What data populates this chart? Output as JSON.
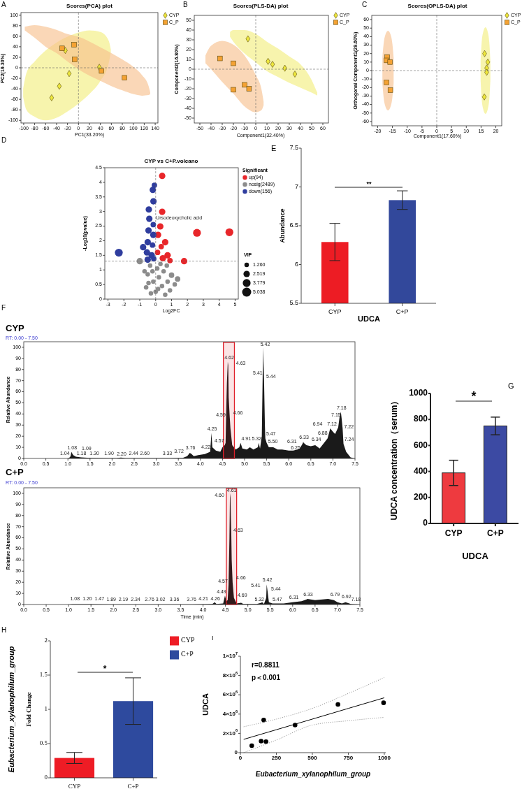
{
  "chart_data": [
    {
      "type": "scatter",
      "title": "Scores(PCA) plot",
      "xlabel": "PC1(33.20%)",
      "ylabel": "PC2(19.30%)",
      "annotations": [
        "A"
      ],
      "xlim": [
        -105,
        145
      ],
      "ylim": [
        -105,
        105
      ],
      "xticks": [
        -100,
        -80,
        -60,
        -40,
        -20,
        0,
        20,
        40,
        60,
        80,
        100,
        120,
        140
      ],
      "yticks": [
        -100,
        -80,
        -60,
        -40,
        -20,
        0,
        20,
        40,
        60,
        80,
        100
      ],
      "legend": "top right",
      "ref_lines": [
        {
          "axis": "x",
          "value": 0,
          "line_style": "dashed"
        },
        {
          "axis": "y",
          "value": 0,
          "line_style": "dashed"
        }
      ],
      "series": [
        {
          "type": "line",
          "color": "#f2ee7a",
          "x": [
            -101,
            -95,
            -80,
            -60,
            -40,
            -20,
            0,
            20,
            40,
            55,
            59
          ],
          "values": [
            null,
            null,
            null,
            null,
            null,
            null,
            null,
            null,
            null,
            null,
            null
          ],
          "lower": [
            -55,
            -80,
            -93,
            -100,
            -95,
            -83,
            -68,
            -50,
            -25,
            8,
            30
          ],
          "upper": [
            -40,
            -10,
            12,
            33,
            48,
            59,
            67,
            71,
            68,
            52,
            35
          ]
        },
        {
          "type": "line",
          "color": "#f7bf8a",
          "x": [
            -98,
            -80,
            -60,
            -40,
            -20,
            0,
            20,
            40,
            60,
            80,
            100,
            116,
            128,
            131
          ],
          "values": [
            null,
            null,
            null,
            null,
            null,
            null,
            null,
            null,
            null,
            null,
            null,
            null,
            null,
            null
          ],
          "lower": [
            71,
            57,
            40,
            28,
            12,
            -3,
            -15,
            -25,
            -35,
            -43,
            -50,
            -53,
            -52,
            -50
          ],
          "upper": [
            78,
            81,
            78,
            72,
            64,
            59,
            50,
            39,
            28,
            16,
            2,
            -14,
            -35,
            -47
          ]
        },
        {
          "name": "CYP",
          "color": "#ece63c",
          "marker": "diamond",
          "x": [
            -24,
            -17,
            -35,
            -49,
            38
          ],
          "values": [
            33,
            -11,
            -35,
            -57,
            1
          ]
        },
        {
          "name": "C_P",
          "color": "#f5a233",
          "marker": "square",
          "x": [
            -30,
            -8,
            -7,
            42,
            84
          ],
          "values": [
            37,
            44,
            16,
            -6,
            -19
          ]
        }
      ]
    },
    {
      "type": "scatter",
      "title": "Scores(PLS-DA) plot",
      "xlabel": "Component1(32.40%)",
      "ylabel": "Component2(16.80%)",
      "annotations": [
        "B"
      ],
      "xlim": [
        -55,
        65
      ],
      "ylim": [
        -55,
        55
      ],
      "xticks": [
        -50,
        -40,
        -30,
        -20,
        -10,
        0,
        10,
        20,
        30,
        40,
        50,
        60
      ],
      "yticks": [
        -50,
        -40,
        -30,
        -20,
        -10,
        0,
        10,
        20,
        30,
        40,
        50
      ],
      "legend": "top right",
      "ref_lines": [
        {
          "axis": "x",
          "value": 0,
          "line_style": "dashed"
        },
        {
          "axis": "y",
          "value": 0,
          "line_style": "dashed"
        }
      ],
      "series": [
        {
          "type": "line",
          "color": "#f7bf8a",
          "x": [
            -45,
            -40,
            -30,
            -20,
            -10,
            0,
            5,
            7
          ],
          "values": [
            null,
            null,
            null,
            null,
            null,
            null,
            null,
            null
          ],
          "lower": [
            6,
            0,
            -13,
            -25,
            -38,
            -44,
            -42,
            -37
          ],
          "upper": [
            14,
            24,
            29,
            25,
            14,
            -6,
            -20,
            -33
          ]
        },
        {
          "type": "line",
          "color": "#f2ee7a",
          "x": [
            -23,
            -20,
            -10,
            0,
            10,
            20,
            30,
            40,
            50,
            55
          ],
          "values": [
            null,
            null,
            null,
            null,
            null,
            null,
            null,
            null,
            null,
            null
          ],
          "lower": [
            33,
            28,
            16,
            7,
            -2,
            -8,
            -14,
            -19,
            -24,
            -27
          ],
          "upper": [
            38,
            40,
            40,
            36,
            28,
            21,
            13,
            5,
            -11,
            -24
          ]
        },
        {
          "name": "CYP",
          "color": "#ece63c",
          "marker": "diamond",
          "x": [
            -7,
            11,
            15,
            26,
            35
          ],
          "values": [
            31,
            8,
            5,
            1,
            -5
          ]
        },
        {
          "name": "C_P",
          "color": "#f5a233",
          "marker": "square",
          "x": [
            -32,
            -20,
            -20,
            -10,
            -6
          ],
          "values": [
            11,
            6,
            -21,
            -16,
            -20
          ]
        }
      ]
    },
    {
      "type": "scatter",
      "title": "Scores(OPLS-DA) plot",
      "xlabel": "Component1(17.60%)",
      "ylabel": "Orthogonal Component1(29.60%)",
      "annotations": [
        "C"
      ],
      "xlim": [
        -22,
        22
      ],
      "ylim": [
        -65,
        65
      ],
      "xticks": [
        -20,
        -15,
        -10,
        -5,
        0,
        5,
        10,
        15,
        20
      ],
      "yticks": [
        -60,
        -50,
        -40,
        -30,
        -20,
        -10,
        0,
        10,
        20,
        30,
        40,
        50,
        60
      ],
      "legend": "top right",
      "ref_lines": [
        {
          "axis": "x",
          "value": 0,
          "line_style": "dashed"
        },
        {
          "axis": "y",
          "value": 0,
          "line_style": "dashed"
        }
      ],
      "series": [
        {
          "type": "line",
          "color": "#f7bf8a",
          "x": [
            -18.4,
            -18,
            -17.5,
            -16.5,
            -15.5,
            -15,
            -14.6
          ],
          "values": [
            null,
            null,
            null,
            null,
            null,
            null,
            null
          ],
          "lower": [
            -15,
            -31,
            -41,
            -47,
            -41,
            -31,
            -15
          ],
          "upper": [
            15,
            31,
            41,
            47,
            41,
            31,
            15
          ]
        },
        {
          "type": "line",
          "color": "#f2ee7a",
          "x": [
            14.85,
            15.2,
            15.7,
            16.5,
            17.3,
            17.8,
            18.15
          ],
          "values": [
            null,
            null,
            null,
            null,
            null,
            null,
            null
          ],
          "lower": [
            -12,
            -33,
            -45,
            -51,
            -45,
            -33,
            -12
          ],
          "upper": [
            12,
            33,
            45,
            51,
            45,
            33,
            12
          ]
        },
        {
          "name": "CYP",
          "color": "#ece63c",
          "marker": "diamond",
          "x": [
            16.2,
            17.3,
            16.9,
            16.9,
            16.1
          ],
          "values": [
            20,
            10,
            3,
            -2,
            -31
          ]
        },
        {
          "name": "C_P",
          "color": "#f5a233",
          "marker": "square",
          "x": [
            -16.8,
            -17,
            -15.8,
            -17,
            -15.7
          ],
          "values": [
            16,
            12,
            10,
            -14,
            -23
          ]
        }
      ]
    },
    {
      "type": "bubble",
      "title": "CYP vs C+P.volcano",
      "xlabel": "Log2FC",
      "ylabel": "-Log10(pvalue)",
      "legend_title": "Significant",
      "annotations": [
        "D",
        {
          "text": "Ursodeoxycholic acid",
          "x": 0.41,
          "y": 2.99
        },
        "VIP"
      ],
      "xlim": [
        -3.2,
        5.2
      ],
      "ylim": [
        0,
        4.5
      ],
      "xticks": [
        -3,
        -2,
        -1,
        0,
        1,
        2,
        3,
        4,
        5
      ],
      "yticks": [
        0,
        0.5,
        1,
        1.5,
        2,
        2.5,
        3,
        3.5,
        4,
        4.5
      ],
      "legend": "top right",
      "size_legend": [
        {
          "value": 1.26,
          "label": "1.260"
        },
        2.519,
        3.779,
        5.038
      ],
      "ref_lines": [
        {
          "axis": "x",
          "value": 0,
          "line_style": "dashed"
        },
        {
          "axis": "y",
          "value": 1.3,
          "line_style": "dashed"
        }
      ],
      "series": [
        {
          "name": "up(94)",
          "color": "#e8262a",
          "x": [
            0.41,
            0.41,
            2.6,
            4.64,
            1.79,
            0.29,
            0.15,
            0.6,
            0.35,
            0.75,
            0.12,
            0.45,
            0.9
          ],
          "values": [
            4.22,
            2.99,
            2.27,
            2.29,
            1.3,
            2.49,
            2.2,
            1.95,
            1.8,
            1.5,
            1.6,
            1.4,
            1.32
          ],
          "sizes": [
            2.519,
            2.519,
            3.779,
            3.779,
            2.519,
            2.519,
            2.519,
            2.519,
            1.8,
            2.519,
            1.8,
            2.519,
            1.8
          ]
        },
        {
          "name": "nosig(2489)",
          "color": "#8c8c8c",
          "x": [
            -1,
            1.38,
            1,
            -0.6,
            -0.5,
            -0.35,
            -0.3,
            -0.15,
            0.1,
            0,
            0.2,
            0.3,
            0.4,
            0.5,
            0.6,
            0.75,
            0.7,
            -0.2,
            0.15,
            -0.45,
            0.9,
            1.2,
            -0.7
          ],
          "values": [
            1.3,
            0.69,
            0.82,
            0.4,
            0.85,
            1.15,
            0.2,
            0.6,
            1.05,
            0.25,
            0.75,
            1.2,
            0.45,
            0.95,
            0.15,
            0.6,
            1.15,
            0.95,
            0.35,
            0.55,
            0.3,
            0.5,
            0.95
          ],
          "sizes": [
            2.519,
            1.8,
            1.8,
            1.26,
            1.26,
            1.26,
            1.26,
            1.26,
            1.26,
            1.26,
            1.26,
            1.26,
            1.26,
            1.26,
            1.26,
            1.26,
            1.26,
            1.26,
            1.26,
            1.26,
            1.26,
            1.26,
            1.26
          ]
        },
        {
          "name": "down(156)",
          "color": "#2f3d9e",
          "x": [
            -0.08,
            -0.18,
            -0.14,
            -0.43,
            -2.32,
            -0.79,
            -0.4,
            -0.15,
            -0.45,
            -0.15,
            -0.5,
            -0.2,
            -0.55,
            -0.25,
            -0.5,
            -0.12
          ],
          "values": [
            3.9,
            3.74,
            3.35,
            3.07,
            1.59,
            1.78,
            2.75,
            2.55,
            2.35,
            2.2,
            1.95,
            1.85,
            1.6,
            1.5,
            1.35,
            1.38
          ],
          "sizes": [
            1.8,
            2.519,
            2.519,
            2.519,
            3.779,
            2.519,
            2.519,
            1.8,
            2.519,
            2.519,
            2.519,
            1.8,
            2.519,
            2.519,
            2.519,
            1.8
          ]
        }
      ]
    },
    {
      "type": "bar",
      "categories": [
        "CYP",
        "C+P"
      ],
      "values": [
        6.29,
        6.83
      ],
      "errors": [
        0.24,
        0.12
      ],
      "colors": [
        "#ed1c24",
        "#32489b"
      ],
      "xlabel": "UDCA",
      "ylabel": "Abundance",
      "annotations": [
        "E",
        "**"
      ],
      "ylim": [
        5.5,
        7.5
      ],
      "yticks": [
        5.5,
        6,
        6.5,
        7,
        7.5
      ]
    },
    {
      "type": "area",
      "title": "CYP",
      "subtitle": "RT: 0.00 - 7.50",
      "ylabel": "Relative Abundance",
      "color": "#1a1a1a",
      "xlim": [
        0,
        7.5
      ],
      "ylim": [
        0,
        105
      ],
      "xticks": [
        {
          "value": 0,
          "label": "0.0"
        },
        0.5,
        {
          "value": 1,
          "label": "1.0"
        },
        1.5,
        {
          "value": 2,
          "label": "2.0"
        },
        2.5,
        {
          "value": 3,
          "label": "3.0"
        },
        3.5,
        {
          "value": 4,
          "label": "4.0"
        },
        4.5,
        {
          "value": 5,
          "label": "5.0"
        },
        5.5,
        {
          "value": 6,
          "label": "6.0"
        },
        6.5,
        {
          "value": 7,
          "label": "7.0"
        },
        7.5
      ],
      "yticks": [
        0,
        10,
        20,
        30,
        40,
        50,
        60,
        70,
        80,
        90,
        100
      ],
      "bands": [
        {
          "axis": "x",
          "from": 4.52,
          "to": 4.77,
          "color": "#e0202a"
        }
      ],
      "x": [
        0,
        1,
        1.04,
        1.06,
        1.08,
        1.09,
        1.12,
        1.18,
        1.3,
        1.5,
        1.9,
        2.1,
        2.2,
        2.3,
        2.44,
        2.6,
        3.33,
        3.6,
        3.7,
        3.72,
        3.76,
        3.8,
        3.85,
        3.95,
        4.1,
        4.22,
        4.25,
        4.27,
        4.35,
        4.45,
        4.5,
        4.55,
        4.57,
        4.59,
        4.6,
        4.62,
        4.63,
        4.64,
        4.66,
        4.68,
        4.72,
        4.8,
        4.88,
        4.91,
        4.95,
        5.05,
        5.12,
        5.2,
        5.3,
        5.32,
        5.35,
        5.39,
        5.41,
        5.42,
        5.43,
        5.44,
        5.46,
        5.47,
        5.5,
        5.55,
        5.65,
        5.75,
        5.85,
        6,
        6.1,
        6.2,
        6.25,
        6.31,
        6.33,
        6.34,
        6.4,
        6.5,
        6.6,
        6.7,
        6.8,
        6.88,
        6.94,
        7,
        7.05,
        7.12,
        7.15,
        7.18,
        7.2,
        7.22,
        7.24,
        7.3,
        7.4,
        7.5
      ],
      "values": [
        0,
        0,
        1,
        2,
        6,
        5,
        3,
        1.5,
        1,
        0.5,
        0.3,
        0.3,
        0.8,
        0.3,
        0.3,
        0.3,
        0.3,
        0.5,
        2,
        3,
        5,
        4,
        2,
        3,
        4,
        6,
        23,
        10,
        7,
        6,
        10,
        12,
        14,
        52,
        68,
        87,
        84,
        55,
        40,
        27,
        12,
        8,
        10,
        14,
        9,
        8,
        10,
        8,
        10,
        14,
        9,
        20,
        75,
        100,
        85,
        72,
        30,
        18,
        14,
        10,
        10,
        8,
        8,
        7,
        7,
        8,
        9,
        13,
        15,
        14,
        12,
        11,
        12,
        9,
        14,
        18,
        27,
        24,
        22,
        28,
        37,
        42,
        35,
        27,
        13,
        6,
        1,
        0
      ],
      "annotations": [
        "F",
        {
          "text": "1.04",
          "x": 1.04,
          "y": 1
        },
        {
          "text": "1.08",
          "x": 1.08,
          "y": 6
        },
        {
          "text": "1.09",
          "x": 1.09,
          "y": 5
        },
        {
          "text": "1.18",
          "x": 1.18,
          "y": 1.5
        },
        {
          "text": "1.30",
          "x": 1.3,
          "y": 1
        },
        {
          "text": "1.90",
          "x": 1.9,
          "y": 0.3
        },
        {
          "text": "2.20",
          "x": 2.2,
          "y": 0.8
        },
        {
          "text": "2.44",
          "x": 2.44,
          "y": 0.3
        },
        {
          "text": "2.60",
          "x": 2.6,
          "y": 0.3
        },
        {
          "text": "3.33",
          "x": 3.33,
          "y": 0.3
        },
        {
          "text": "3.72",
          "x": 3.72,
          "y": 3
        },
        {
          "text": "3.76",
          "x": 3.76,
          "y": 5
        },
        {
          "text": "4.22",
          "x": 4.22,
          "y": 6
        },
        {
          "text": "4.25",
          "x": 4.25,
          "y": 23
        },
        {
          "text": "4.57",
          "x": 4.57,
          "y": 14
        },
        {
          "text": "4.59",
          "x": 4.59,
          "y": 52
        },
        {
          "text": "4.62",
          "x": 4.62,
          "y": 87
        },
        {
          "text": "4.63",
          "x": 4.63,
          "y": 84
        },
        {
          "text": "4.66",
          "x": 4.66,
          "y": 40
        },
        {
          "text": "4.91",
          "x": 4.91,
          "y": 14
        },
        {
          "text": "5.32",
          "x": 5.32,
          "y": 14
        },
        {
          "text": "5.41",
          "x": 5.41,
          "y": 75
        },
        {
          "text": "5.42",
          "x": 5.42,
          "y": 100
        },
        {
          "text": "5.44",
          "x": 5.44,
          "y": 72
        },
        {
          "text": "5.47",
          "x": 5.47,
          "y": 18
        },
        {
          "text": "5.50",
          "x": 5.5,
          "y": 14
        },
        {
          "text": "6.31",
          "x": 6.31,
          "y": 13
        },
        {
          "text": "6.25",
          "x": 6.25,
          "y": 9
        },
        {
          "text": "6.33",
          "x": 6.33,
          "y": 15
        },
        {
          "text": "6.34",
          "x": 6.34,
          "y": 14
        },
        {
          "text": "6.88",
          "x": 6.88,
          "y": 18
        },
        {
          "text": "6.94",
          "x": 6.94,
          "y": 27
        },
        {
          "text": "7.12",
          "x": 7.12,
          "y": 28
        },
        {
          "text": "7.15",
          "x": 7.15,
          "y": 37
        },
        {
          "text": "7.18",
          "x": 7.18,
          "y": 42
        },
        {
          "text": "7.22",
          "x": 7.22,
          "y": 27
        },
        {
          "text": "7.24",
          "x": 7.24,
          "y": 13
        }
      ]
    },
    {
      "type": "area",
      "title": "C+P",
      "subtitle": "RT: 0.00 - 7.50",
      "xlabel": "Time (min)",
      "ylabel": "Relative Abundance",
      "color": "#1a1a1a",
      "xlim": [
        0,
        7.5
      ],
      "ylim": [
        0,
        105
      ],
      "xticks": [
        {
          "value": 0,
          "label": "0.0"
        },
        0.5,
        {
          "value": 1,
          "label": "1.0"
        },
        1.5,
        {
          "value": 2,
          "label": "2.0"
        },
        2.5,
        {
          "value": 3,
          "label": "3.0"
        },
        3.5,
        {
          "value": 4,
          "label": "4.0"
        },
        4.5,
        {
          "value": 5,
          "label": "5.0"
        },
        5.5,
        {
          "value": 6,
          "label": "6.0"
        },
        6.5,
        {
          "value": 7,
          "label": "7.0"
        },
        7.5
      ],
      "yticks": [
        0,
        10,
        20,
        30,
        40,
        50,
        60,
        70,
        80,
        90,
        100
      ],
      "bands": [
        {
          "axis": "x",
          "from": 4.52,
          "to": 4.75,
          "color": "#e0202a"
        }
      ],
      "x": [
        0,
        1,
        1.08,
        1.2,
        1.47,
        1.89,
        2.19,
        2.34,
        2.76,
        3.02,
        3.36,
        3.76,
        4,
        4.21,
        4.26,
        4.3,
        4.45,
        4.49,
        4.52,
        4.55,
        4.57,
        4.59,
        4.6,
        4.61,
        4.62,
        4.63,
        4.64,
        4.66,
        4.69,
        4.75,
        4.85,
        4.9,
        5.2,
        5.3,
        5.32,
        5.36,
        5.41,
        5.42,
        5.44,
        5.47,
        5.55,
        5.8,
        6,
        6.2,
        6.31,
        6.33,
        6.5,
        6.79,
        6.92,
        7,
        7.1,
        7.18,
        7.3,
        7.5
      ],
      "values": [
        0,
        0,
        0.3,
        0.3,
        0.3,
        0.2,
        0.2,
        0.2,
        0.2,
        0.2,
        0.2,
        0.2,
        0.3,
        0.5,
        2,
        0.5,
        1,
        8,
        3,
        4,
        18,
        60,
        96,
        100,
        80,
        65,
        40,
        20,
        6,
        1,
        1.5,
        0.5,
        0.5,
        1.5,
        2,
        0.5,
        6,
        18,
        12,
        2,
        1,
        1,
        2,
        3,
        4.5,
        5,
        4,
        5,
        4,
        2,
        1,
        2,
        0.5,
        0
      ],
      "annotations": [
        {
          "text": "1.08",
          "x": 1.08,
          "y": 0.3
        },
        {
          "text": "1.20",
          "x": 1.2,
          "y": 0.3
        },
        {
          "text": "1.47",
          "x": 1.47,
          "y": 0.3
        },
        {
          "text": "1.89",
          "x": 1.89,
          "y": 0.2
        },
        {
          "text": "2.19",
          "x": 2.19,
          "y": 0.2
        },
        {
          "text": "2.34",
          "x": 2.34,
          "y": 0.2
        },
        {
          "text": "2.76",
          "x": 2.76,
          "y": 0.2
        },
        {
          "text": "3.02",
          "x": 3.02,
          "y": 0.2
        },
        {
          "text": "3.36",
          "x": 3.36,
          "y": 0.2
        },
        {
          "text": "3.76",
          "x": 3.76,
          "y": 0.2
        },
        {
          "text": "4.21",
          "x": 4.21,
          "y": 0.5
        },
        {
          "text": "4.26",
          "x": 4.26,
          "y": 2
        },
        {
          "text": "4.49",
          "x": 4.49,
          "y": 8
        },
        {
          "text": "4.57",
          "x": 4.57,
          "y": 18
        },
        {
          "text": "4.60",
          "x": 4.6,
          "y": 96
        },
        {
          "text": "4.61",
          "x": 4.61,
          "y": 100
        },
        {
          "text": "4.63",
          "x": 4.63,
          "y": 65
        },
        {
          "text": "4.66",
          "x": 4.66,
          "y": 20
        },
        {
          "text": "4.69",
          "x": 4.69,
          "y": 6
        },
        {
          "text": "5.32",
          "x": 5.32,
          "y": 2
        },
        {
          "text": "5.41",
          "x": 5.41,
          "y": 6
        },
        {
          "text": "5.42",
          "x": 5.42,
          "y": 18
        },
        {
          "text": "5.44",
          "x": 5.44,
          "y": 12
        },
        {
          "text": "5.47",
          "x": 5.47,
          "y": 2
        },
        {
          "text": "6.31",
          "x": 6.31,
          "y": 4.5
        },
        {
          "text": "6.33",
          "x": 6.33,
          "y": 5
        },
        {
          "text": "6.79",
          "x": 6.79,
          "y": 5
        },
        {
          "text": "6.92",
          "x": 6.92,
          "y": 4
        },
        {
          "text": "7.18",
          "x": 7.18,
          "y": 2
        }
      ]
    },
    {
      "type": "bar",
      "categories": [
        "CYP",
        "C+P"
      ],
      "values": [
        389,
        750
      ],
      "errors": [
        97,
        68
      ],
      "colors": [
        "#ee3a3f",
        "#3c4aa3"
      ],
      "xlabel": "UDCA",
      "ylabel": "UDCA concentration（serum）",
      "annotations": [
        "G",
        "*"
      ],
      "ylim": [
        0,
        1000
      ],
      "yticks": [
        0,
        200,
        400,
        600,
        800,
        1000
      ]
    },
    {
      "type": "bar",
      "categories": [
        "CYP",
        "C+P"
      ],
      "title": "Eubacterium_xylanophilum_group",
      "ylabel": "Fold Change",
      "annotations": [
        "H",
        "*"
      ],
      "ylim": [
        0,
        2
      ],
      "yticks": [
        0,
        0.5,
        1,
        1.5,
        2
      ],
      "legend": "top right",
      "series": [
        {
          "name": "CYP",
          "color": "#ee1c25",
          "values": [
            0.29,
            null
          ],
          "errors": [
            0.08,
            null
          ]
        },
        {
          "name": "C+P",
          "color": "#2e4a9e",
          "values": [
            null,
            1.12
          ],
          "errors": [
            null,
            0.34
          ]
        }
      ]
    },
    {
      "type": "scatter",
      "xlabel": "Eubacterium_xylanophilum_group",
      "ylabel": "UDCA",
      "annotations": [
        "I",
        "r=0.8811",
        "p＜0.001"
      ],
      "xlim": [
        0,
        1010
      ],
      "ylim": [
        0,
        10000000
      ],
      "xticks": [
        0,
        250,
        500,
        750,
        1000
      ],
      "yticks": [
        0,
        {
          "value": 2000000,
          "label": "2×10$^{6}$"
        },
        {
          "value": 4000000,
          "label": "4×10$^{6}$"
        },
        {
          "value": 6000000,
          "label": "6×10$^{6}$"
        },
        {
          "value": 8000000,
          "label": "8×10$^{6}$"
        },
        {
          "value": 10000000,
          "label": "1×10$^{7}$"
        }
      ],
      "series": [
        {
          "color": "#000000",
          "marker": "circle",
          "x": [
            79,
            144,
            178,
            162,
            380,
            678,
            995
          ],
          "values": [
            720000,
            1200000,
            1140000,
            3380000,
            2860000,
            5000000,
            5170000
          ]
        },
        {
          "type": "line",
          "color": "#000000",
          "x": [
            23,
            250,
            500,
            750,
            1000
          ],
          "values": [
            1380000,
            2380000,
            3480000,
            4590000,
            5690000
          ]
        },
        {
          "type": "line",
          "color": "#888888",
          "line_style": "dotted",
          "x": [
            23,
            250,
            500,
            750,
            1000
          ],
          "values": [
            0,
            1310000,
            2860000,
            3310000,
            3660000
          ]
        },
        {
          "type": "line",
          "color": "#888888",
          "line_style": "dotted",
          "x": [
            23,
            250,
            500,
            750,
            1000
          ],
          "values": [
            2690000,
            3480000,
            4590000,
            6140000,
            7790000
          ]
        }
      ]
    }
  ]
}
